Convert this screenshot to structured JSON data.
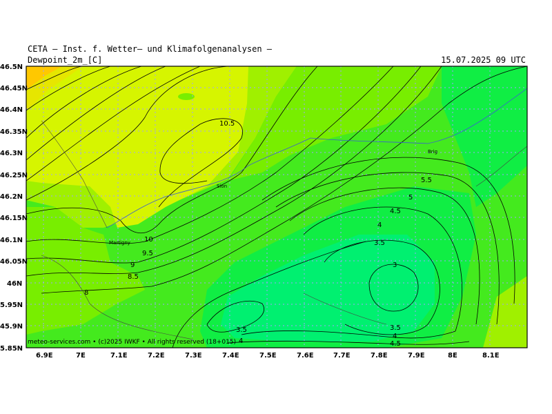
{
  "header": {
    "title": "CETA — Inst. f. Wetter— und Klimafolgenanalysen —",
    "variable": "Dewpoint_2m_[C]",
    "datetime": "15.07.2025 09 UTC"
  },
  "axes": {
    "lon_labels": [
      "6.9E",
      "7E",
      "7.1E",
      "7.2E",
      "7.3E",
      "7.4E",
      "7.5E",
      "7.6E",
      "7.7E",
      "7.8E",
      "7.9E",
      "8E",
      "8.1E"
    ],
    "lat_labels": [
      "46.5N",
      "46.45N",
      "46.4N",
      "46.35N",
      "46.3N",
      "46.25N",
      "46.2N",
      "46.15N",
      "46.1N",
      "46.05N",
      "46N",
      "5.95N",
      "45.9N",
      "5.85N"
    ]
  },
  "places": {
    "sion": "Sion",
    "brig": "Brig",
    "martigny": "Martigny"
  },
  "contour_labels": {
    "c105": "10.5",
    "c10": "10",
    "c95": "9.5",
    "c9": "9",
    "c85": "8.5",
    "c8": "8",
    "c55": "5.5",
    "c5": "5",
    "c45a": "4.5",
    "c4a": "4",
    "c35a": "3.5",
    "c3": "3",
    "c35b": "3.5",
    "c4b": "4",
    "c45b": "4.5",
    "c35c": "3.5",
    "c4c": "4"
  },
  "colors": {
    "c12": "#ffc800",
    "c11": "#e6e600",
    "c10": "#d6f500",
    "c9": "#a0f000",
    "c8": "#78ee00",
    "c6": "#44ea1e",
    "c5": "#10ee44",
    "c4": "#00f070"
  },
  "footer": "meteo-services.com • (c)2025 IWKF • All rights reserved (18+015)"
}
